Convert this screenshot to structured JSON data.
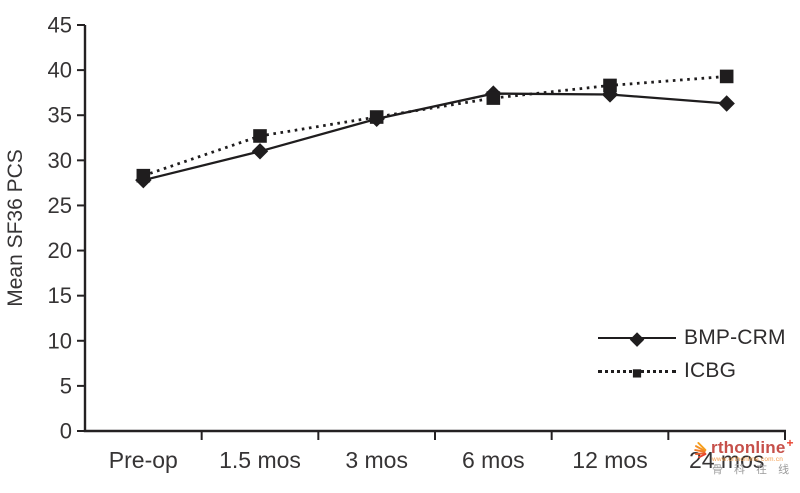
{
  "chart_data": {
    "type": "line",
    "title": "",
    "xlabel": "",
    "ylabel": "Mean SF36 PCS",
    "categories": [
      "Pre-op",
      "1.5 mos",
      "3 mos",
      "6 mos",
      "12 mos",
      "24 mos"
    ],
    "series": [
      {
        "name": "BMP-CRM",
        "marker": "diamond",
        "line_style": "solid",
        "color": "#1f1d1e",
        "values": [
          27.8,
          31.0,
          34.6,
          37.4,
          37.3,
          36.3
        ]
      },
      {
        "name": "ICBG",
        "marker": "square",
        "line_style": "dotted",
        "color": "#1f1d1e",
        "values": [
          28.3,
          32.7,
          34.8,
          36.9,
          38.3,
          39.3
        ]
      }
    ],
    "ylim": [
      0,
      45
    ],
    "ytick_step": 5,
    "grid": false,
    "legend_position": "inside-bottom-right",
    "axis_color": "#242122",
    "text_color": "#363435"
  },
  "watermark": {
    "brand": "rthonline",
    "plus": "+",
    "url": "www.orthonline.com.cn",
    "chinese": "骨 科 在 线",
    "logo_color_start": "#f7a01b",
    "logo_color_end": "#e8432f"
  }
}
